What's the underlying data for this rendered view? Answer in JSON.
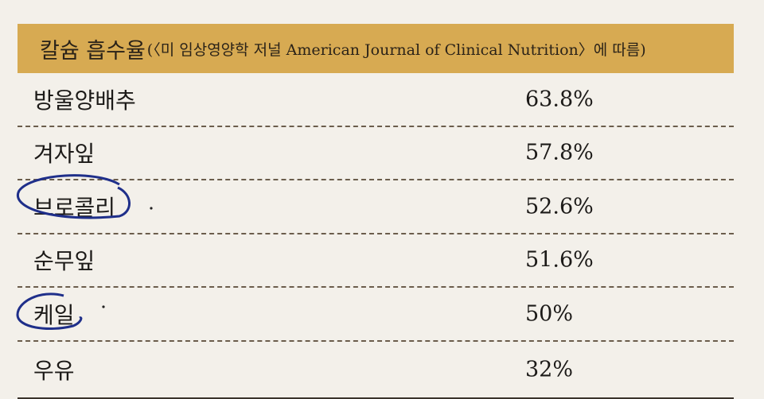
{
  "header": {
    "title": "칼슘 흡수율",
    "subtitle": "(〈미 임상영양학 저널 American Journal of Clinical Nutrition〉에 따름)"
  },
  "table": {
    "rows": [
      [
        "방울양배추",
        "63.8%"
      ],
      [
        "겨자잎",
        "57.8%"
      ],
      [
        "브로콜리",
        "52.6%"
      ],
      [
        "순무잎",
        "51.6%"
      ],
      [
        "케일",
        "50%"
      ],
      [
        "우유",
        "32%"
      ]
    ]
  }
}
